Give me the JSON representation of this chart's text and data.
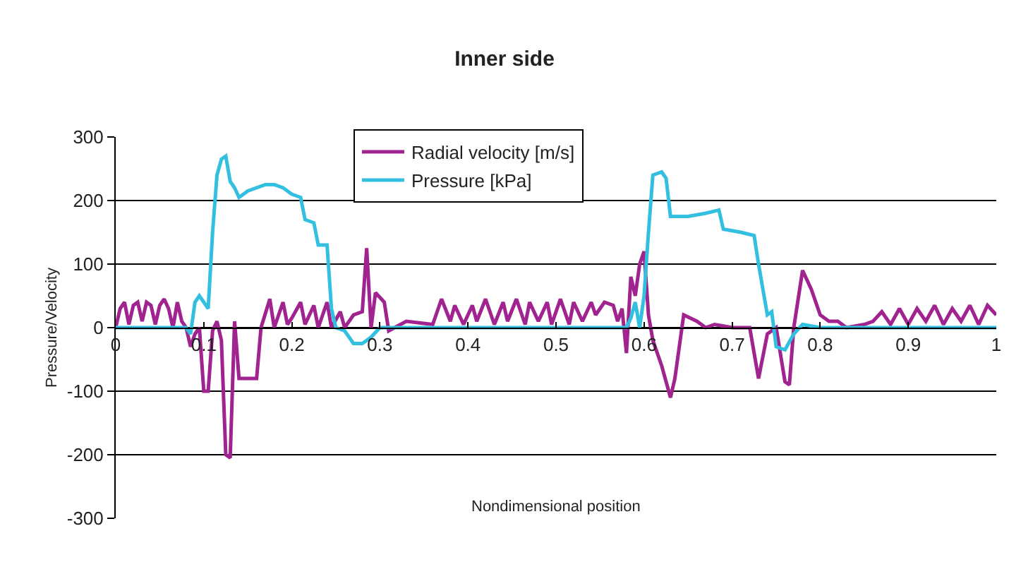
{
  "chart_data": {
    "type": "line",
    "title": "Inner side",
    "xlabel": "Nondimensional position",
    "ylabel": "Pressure/Velocity",
    "xlim": [
      0,
      1
    ],
    "xticks": [
      0,
      0.1,
      0.2,
      0.3,
      0.4,
      0.5,
      0.6,
      0.7,
      0.8,
      0.9,
      1
    ],
    "ylim": [
      -300,
      300
    ],
    "yticks": [
      -300,
      -200,
      -100,
      0,
      100,
      200,
      300
    ],
    "grid": "y",
    "legend": "top",
    "marker": "none",
    "line_style": "solid",
    "series": [
      {
        "name": "Radial velocity [m/s]",
        "color": "#a0238f",
        "x": [
          0,
          0.005,
          0.01,
          0.015,
          0.02,
          0.025,
          0.03,
          0.035,
          0.04,
          0.045,
          0.05,
          0.055,
          0.06,
          0.065,
          0.07,
          0.075,
          0.08,
          0.085,
          0.09,
          0.095,
          0.1,
          0.105,
          0.11,
          0.115,
          0.12,
          0.125,
          0.13,
          0.135,
          0.14,
          0.145,
          0.16,
          0.165,
          0.175,
          0.18,
          0.19,
          0.195,
          0.2,
          0.21,
          0.215,
          0.225,
          0.23,
          0.24,
          0.245,
          0.255,
          0.26,
          0.27,
          0.28,
          0.285,
          0.29,
          0.295,
          0.305,
          0.31,
          0.33,
          0.36,
          0.37,
          0.38,
          0.385,
          0.395,
          0.405,
          0.41,
          0.42,
          0.43,
          0.44,
          0.445,
          0.455,
          0.465,
          0.47,
          0.48,
          0.49,
          0.495,
          0.505,
          0.515,
          0.52,
          0.53,
          0.54,
          0.545,
          0.555,
          0.565,
          0.57,
          0.575,
          0.58,
          0.585,
          0.59,
          0.595,
          0.6,
          0.605,
          0.61,
          0.62,
          0.63,
          0.635,
          0.645,
          0.66,
          0.67,
          0.68,
          0.7,
          0.72,
          0.73,
          0.74,
          0.75,
          0.76,
          0.765,
          0.77,
          0.78,
          0.79,
          0.8,
          0.81,
          0.82,
          0.83,
          0.85,
          0.86,
          0.87,
          0.88,
          0.89,
          0.9,
          0.91,
          0.92,
          0.93,
          0.94,
          0.95,
          0.96,
          0.97,
          0.98,
          0.99,
          1
        ],
        "values": [
          0,
          30,
          40,
          5,
          35,
          40,
          10,
          40,
          35,
          5,
          35,
          45,
          30,
          0,
          40,
          10,
          0,
          -30,
          -10,
          0,
          -100,
          -100,
          -5,
          10,
          -20,
          -200,
          -205,
          10,
          -80,
          -80,
          -80,
          0,
          45,
          0,
          40,
          5,
          15,
          40,
          5,
          35,
          0,
          40,
          0,
          25,
          0,
          20,
          25,
          125,
          0,
          55,
          40,
          -5,
          10,
          5,
          45,
          10,
          35,
          5,
          35,
          10,
          45,
          5,
          40,
          10,
          45,
          5,
          40,
          10,
          40,
          5,
          45,
          5,
          40,
          10,
          40,
          20,
          40,
          35,
          10,
          30,
          -40,
          80,
          50,
          100,
          120,
          20,
          -20,
          -60,
          -110,
          -80,
          20,
          10,
          0,
          5,
          0,
          0,
          -80,
          -10,
          0,
          -85,
          -90,
          0,
          90,
          60,
          20,
          10,
          10,
          0,
          5,
          10,
          25,
          5,
          30,
          5,
          30,
          10,
          35,
          5,
          30,
          10,
          35,
          5,
          35,
          20
        ]
      },
      {
        "name": "Pressure [kPa]",
        "color": "#33bfe0",
        "x": [
          0,
          0.08,
          0.085,
          0.09,
          0.095,
          0.105,
          0.11,
          0.115,
          0.12,
          0.125,
          0.13,
          0.135,
          0.14,
          0.15,
          0.17,
          0.18,
          0.19,
          0.2,
          0.21,
          0.215,
          0.225,
          0.23,
          0.24,
          0.245,
          0.25,
          0.26,
          0.27,
          0.28,
          0.29,
          0.3,
          0.58,
          0.585,
          0.59,
          0.595,
          0.6,
          0.605,
          0.61,
          0.62,
          0.625,
          0.63,
          0.65,
          0.67,
          0.685,
          0.69,
          0.71,
          0.725,
          0.73,
          0.74,
          0.745,
          0.75,
          0.76,
          0.77,
          0.78,
          0.8,
          1
        ],
        "values": [
          0,
          0,
          -10,
          40,
          50,
          30,
          150,
          240,
          265,
          270,
          230,
          220,
          205,
          215,
          225,
          225,
          220,
          210,
          205,
          170,
          165,
          130,
          130,
          30,
          0,
          -5,
          -25,
          -25,
          -15,
          0,
          0,
          15,
          40,
          0,
          50,
          150,
          240,
          245,
          235,
          175,
          175,
          180,
          185,
          155,
          150,
          145,
          100,
          20,
          25,
          -30,
          -35,
          -10,
          5,
          0,
          0
        ]
      }
    ]
  }
}
